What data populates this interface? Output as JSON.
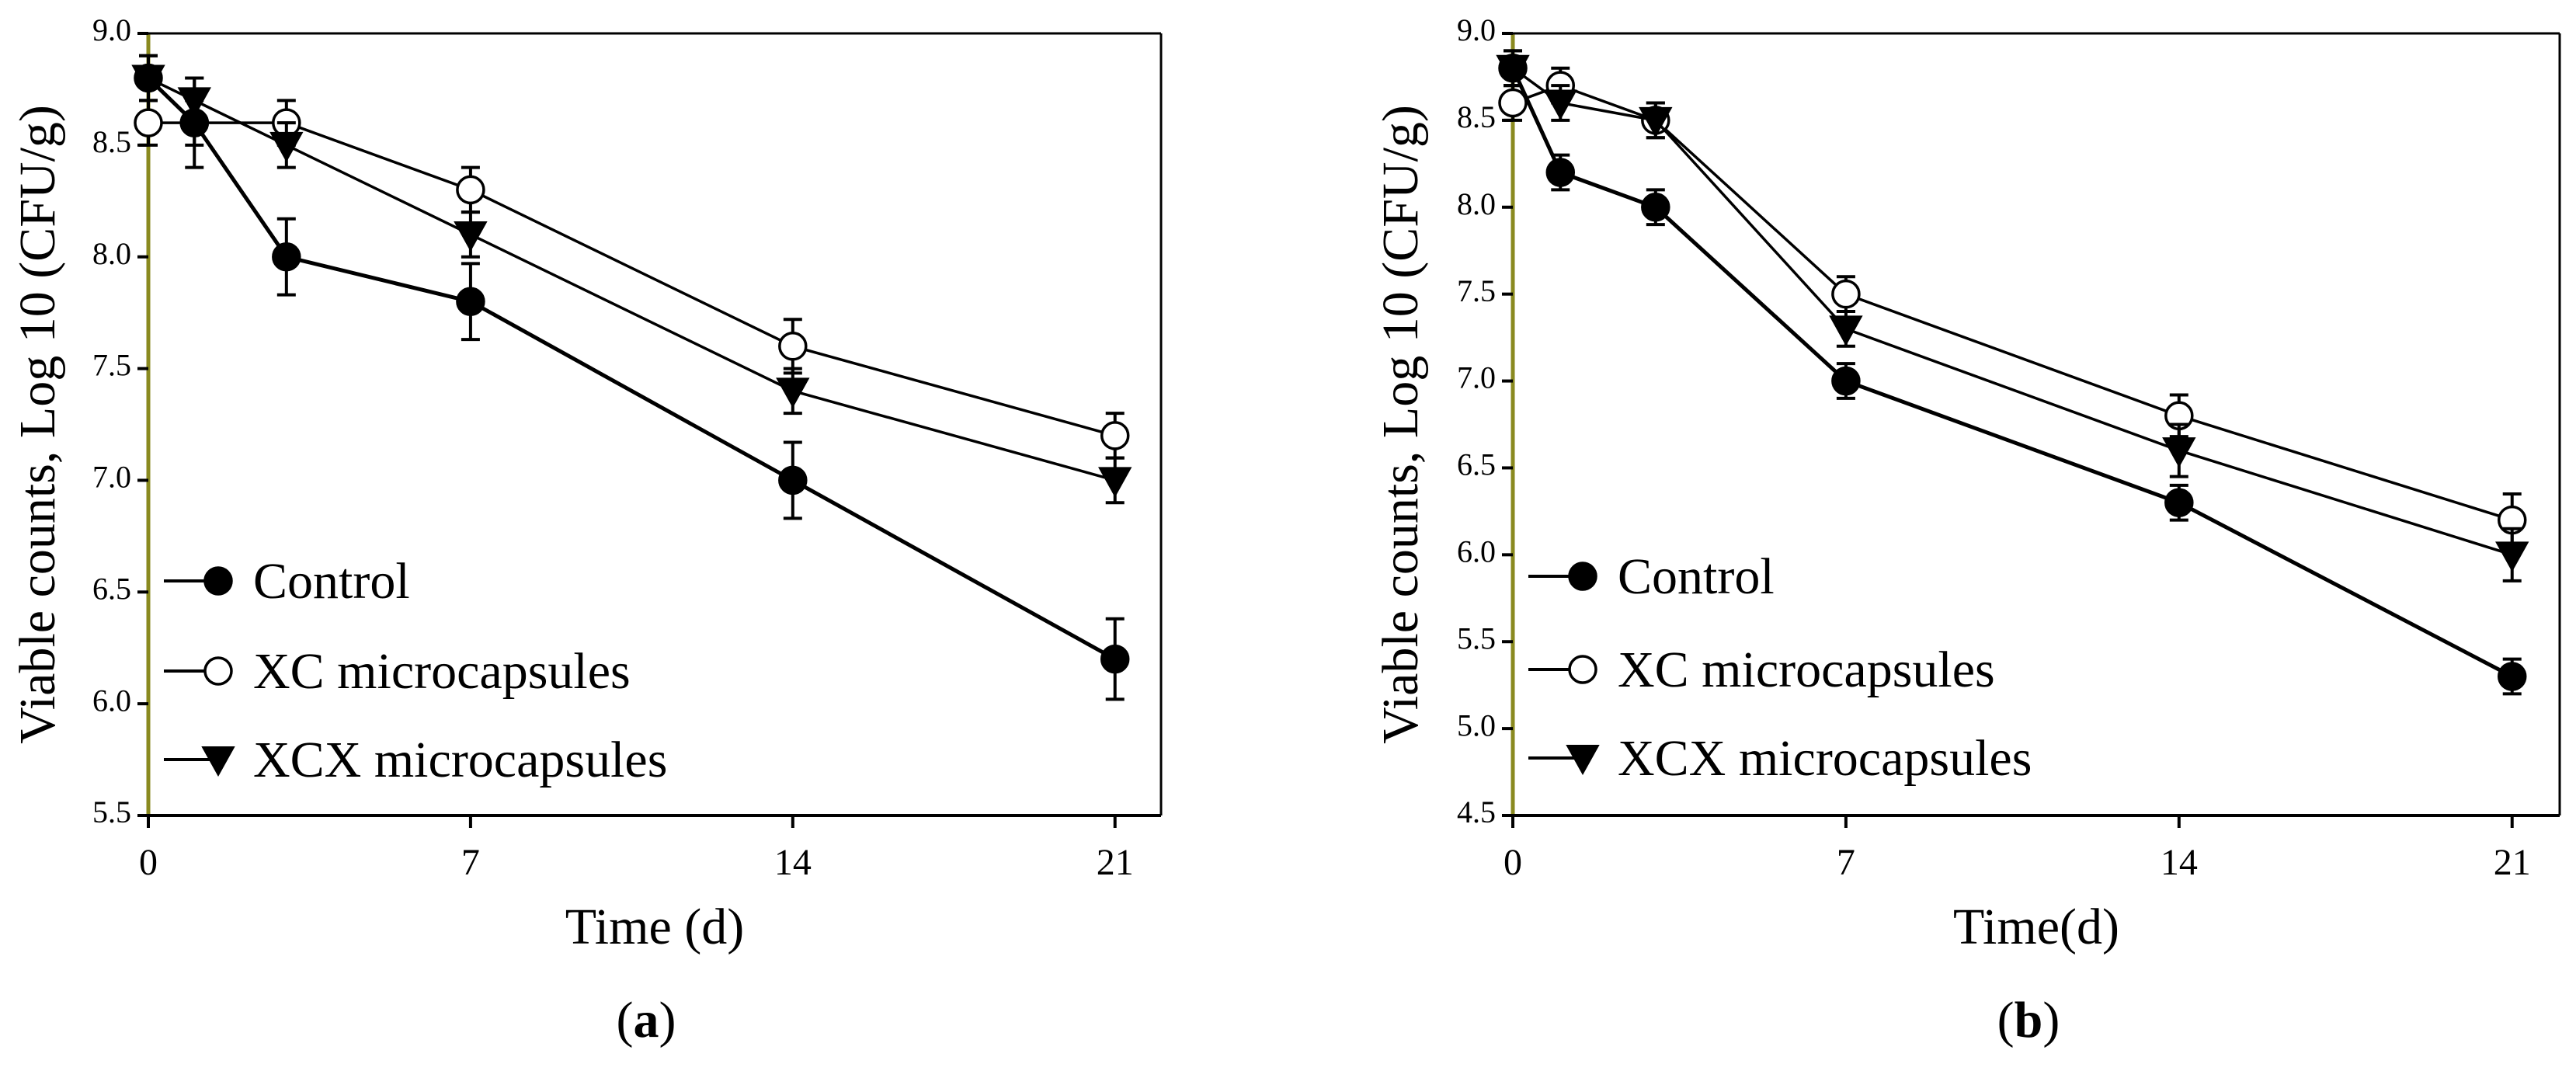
{
  "colors": {
    "axis": "#000000",
    "left_axis_tint": "#8a8a20",
    "marker_fill_dark": "#000000",
    "marker_fill_light": "#ffffff",
    "background": "#ffffff"
  },
  "chart_data": [
    {
      "type": "line",
      "panel_label": "a",
      "xlabel": "Time (d)",
      "ylabel": "Viable counts, Log 10 (CFU/g)",
      "xlim": [
        0,
        22
      ],
      "ylim": [
        5.5,
        9.0
      ],
      "xticks": [
        0,
        7,
        14,
        21
      ],
      "xtick_labels": [
        "0",
        "7",
        "14",
        "21"
      ],
      "yticks": [
        5.5,
        6.0,
        6.5,
        7.0,
        7.5,
        8.0,
        8.5,
        9.0
      ],
      "ytick_labels": [
        "5.5",
        "6.0",
        "6.5",
        "7.0",
        "7.5",
        "8.0",
        "8.5",
        "9.0"
      ],
      "legend_position": "bottom-left",
      "series": [
        {
          "name": "Control",
          "marker": "filled-circle",
          "x": [
            0,
            1,
            3,
            7,
            14,
            21
          ],
          "values": [
            8.8,
            8.6,
            8.0,
            7.8,
            7.0,
            6.2
          ],
          "errors": [
            0.1,
            0.2,
            0.17,
            0.17,
            0.17,
            0.18
          ]
        },
        {
          "name": "XC microcapsules",
          "marker": "open-circle",
          "x": [
            0,
            1,
            3,
            7,
            14,
            21
          ],
          "values": [
            8.6,
            8.6,
            8.6,
            8.3,
            7.6,
            7.2
          ],
          "errors": [
            0.1,
            0.1,
            0.1,
            0.1,
            0.12,
            0.1
          ]
        },
        {
          "name": "XCX microcapsules",
          "marker": "filled-triangle",
          "x": [
            0,
            1,
            3,
            7,
            14,
            21
          ],
          "values": [
            8.8,
            8.7,
            8.5,
            8.1,
            7.4,
            7.0
          ],
          "errors": [
            0.1,
            0.1,
            0.1,
            0.1,
            0.1,
            0.1
          ]
        }
      ]
    },
    {
      "type": "line",
      "panel_label": "b",
      "xlabel": "Time(d)",
      "ylabel": "Viable counts, Log 10 (CFU/g)",
      "xlim": [
        0,
        22
      ],
      "ylim": [
        4.5,
        9.0
      ],
      "xticks": [
        0,
        7,
        14,
        21
      ],
      "xtick_labels": [
        "0",
        "7",
        "14",
        "21"
      ],
      "yticks": [
        4.5,
        5.0,
        5.5,
        6.0,
        6.5,
        7.0,
        7.5,
        8.0,
        8.5,
        9.0
      ],
      "ytick_labels": [
        "4.5",
        "5.0",
        "5.5",
        "6.0",
        "6.5",
        "7.0",
        "7.5",
        "8.0",
        "8.5",
        "9.0"
      ],
      "legend_position": "bottom-left",
      "series": [
        {
          "name": "Control",
          "marker": "filled-circle",
          "x": [
            0,
            1,
            3,
            7,
            14,
            21
          ],
          "values": [
            8.8,
            8.2,
            8.0,
            7.0,
            6.3,
            5.3
          ],
          "errors": [
            0.1,
            0.1,
            0.1,
            0.1,
            0.1,
            0.1
          ]
        },
        {
          "name": "XC microcapsules",
          "marker": "open-circle",
          "x": [
            0,
            1,
            3,
            7,
            14,
            21
          ],
          "values": [
            8.6,
            8.7,
            8.5,
            7.5,
            6.8,
            6.2
          ],
          "errors": [
            0.1,
            0.1,
            0.1,
            0.1,
            0.12,
            0.15
          ]
        },
        {
          "name": "XCX microcapsules",
          "marker": "filled-triangle",
          "x": [
            0,
            1,
            3,
            7,
            14,
            21
          ],
          "values": [
            8.8,
            8.6,
            8.5,
            7.3,
            6.6,
            6.0
          ],
          "errors": [
            0.1,
            0.1,
            0.1,
            0.1,
            0.15,
            0.15
          ]
        }
      ]
    }
  ]
}
